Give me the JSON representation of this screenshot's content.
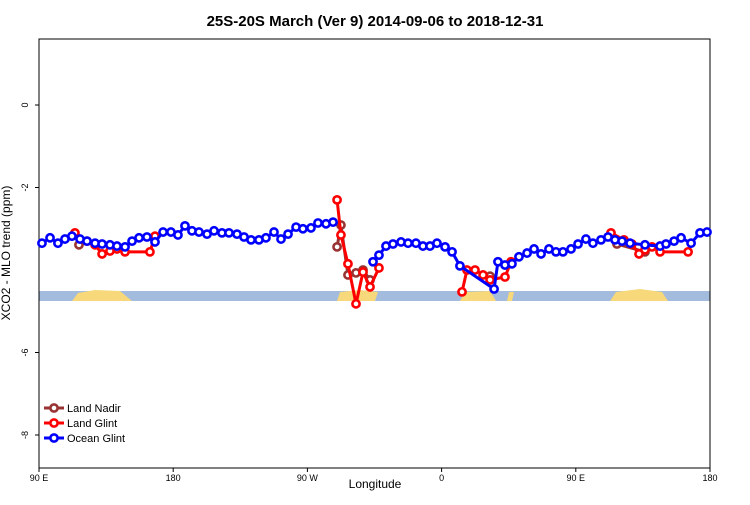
{
  "chart_data": {
    "type": "line",
    "title": "25S-20S March (Ver 9)   2014-09-06 to 2018-12-31",
    "xlabel": "Longitude",
    "ylabel": "XCO2 - MLO trend (ppm)",
    "xlim": [
      90,
      540
    ],
    "ylim": [
      -8.8,
      1.6
    ],
    "xticks": [
      {
        "value": 90,
        "label": "90 E"
      },
      {
        "value": 180,
        "label": "180"
      },
      {
        "value": 270,
        "label": "90 W"
      },
      {
        "value": 360,
        "label": "0"
      },
      {
        "value": 450,
        "label": "90 E"
      },
      {
        "value": 540,
        "label": "180"
      }
    ],
    "yticks": [
      -8,
      -6,
      -2,
      0
    ],
    "legend": "bottom-left",
    "series": [
      {
        "name": "Land Nadir",
        "color": "#993333",
        "x": [
          116.8,
          null,
          289.9,
          292.5,
          297.2,
          302.6,
          307.3,
          312.0,
          null,
          392.5,
          null,
          477.6,
          496.4
        ],
        "values": [
          -3.39,
          null,
          -3.44,
          -2.91,
          -4.12,
          -4.07,
          -4.0,
          -4.24,
          null,
          -4.15,
          null,
          -3.37,
          -3.56
        ]
      },
      {
        "name": "Land Glint",
        "color": "#ff0000",
        "x": [
          114.1,
          122.2,
          127.6,
          132.3,
          137.6,
          142.3,
          147.7,
          164.4,
          167.8,
          null,
          289.9,
          292.5,
          297.2,
          302.6,
          307.3,
          312.0,
          318.0,
          null,
          373.7,
          377.0,
          382.4,
          387.8,
          392.5,
          402.5,
          406.6,
          null,
          473.6,
          482.3,
          487.6,
          492.4,
          496.4,
          501.1,
          506.5,
          525.3
        ],
        "values": [
          -3.1,
          -3.3,
          -3.39,
          -3.61,
          -3.54,
          -3.49,
          -3.56,
          -3.56,
          -3.18,
          null,
          -2.3,
          -3.15,
          -3.85,
          -4.82,
          -4.05,
          -4.41,
          -3.95,
          null,
          -4.53,
          -4.0,
          -4.0,
          -4.12,
          -4.24,
          -4.17,
          -3.8,
          null,
          -3.1,
          -3.27,
          -3.37,
          -3.61,
          -3.51,
          -3.44,
          -3.56,
          -3.56
        ]
      },
      {
        "name": "Ocean Glint",
        "color": "#0000ff",
        "x": [
          92.0,
          97.4,
          102.7,
          107.4,
          112.1,
          117.5,
          122.2,
          127.6,
          132.3,
          137.6,
          142.3,
          147.7,
          152.4,
          157.1,
          162.4,
          167.8,
          173.2,
          178.5,
          183.2,
          187.9,
          192.6,
          197.3,
          202.7,
          207.4,
          212.7,
          217.4,
          222.8,
          227.5,
          232.2,
          237.5,
          242.2,
          247.6,
          252.3,
          257.0,
          262.4,
          267.0,
          272.4,
          277.1,
          282.5,
          287.2,
          null,
          314.0,
          318.0,
          322.7,
          327.4,
          332.8,
          337.5,
          342.8,
          347.5,
          352.2,
          356.9,
          362.3,
          367.0,
          372.3,
          395.2,
          397.8,
          402.5,
          407.2,
          411.9,
          417.3,
          422.0,
          426.7,
          432.0,
          436.7,
          441.4,
          446.8,
          451.5,
          456.8,
          461.5,
          466.9,
          471.6,
          476.3,
          481.0,
          486.4,
          496.4,
          506.5,
          510.5,
          515.9,
          520.6,
          527.3,
          533.3,
          538.0
        ],
        "values": [
          -3.35,
          -3.22,
          -3.35,
          -3.25,
          -3.18,
          -3.25,
          -3.3,
          -3.35,
          -3.37,
          -3.39,
          -3.42,
          -3.44,
          -3.3,
          -3.22,
          -3.2,
          -3.32,
          -3.08,
          -3.08,
          -3.15,
          -2.93,
          -3.05,
          -3.08,
          -3.13,
          -3.05,
          -3.1,
          -3.1,
          -3.13,
          -3.2,
          -3.27,
          -3.27,
          -3.22,
          -3.08,
          -3.25,
          -3.13,
          -2.96,
          -3.0,
          -2.98,
          -2.86,
          -2.88,
          -2.84,
          null,
          -3.8,
          -3.64,
          -3.42,
          -3.37,
          -3.32,
          -3.35,
          -3.35,
          -3.42,
          -3.42,
          -3.35,
          -3.44,
          -3.56,
          -3.9,
          -4.46,
          -3.8,
          -3.88,
          -3.85,
          -3.68,
          -3.59,
          -3.49,
          -3.61,
          -3.49,
          -3.56,
          -3.56,
          -3.49,
          -3.37,
          -3.25,
          -3.35,
          -3.27,
          -3.2,
          -3.27,
          -3.3,
          -3.35,
          -3.39,
          -3.42,
          -3.37,
          -3.3,
          -3.22,
          -3.35,
          -3.1,
          -3.08
        ]
      }
    ]
  }
}
